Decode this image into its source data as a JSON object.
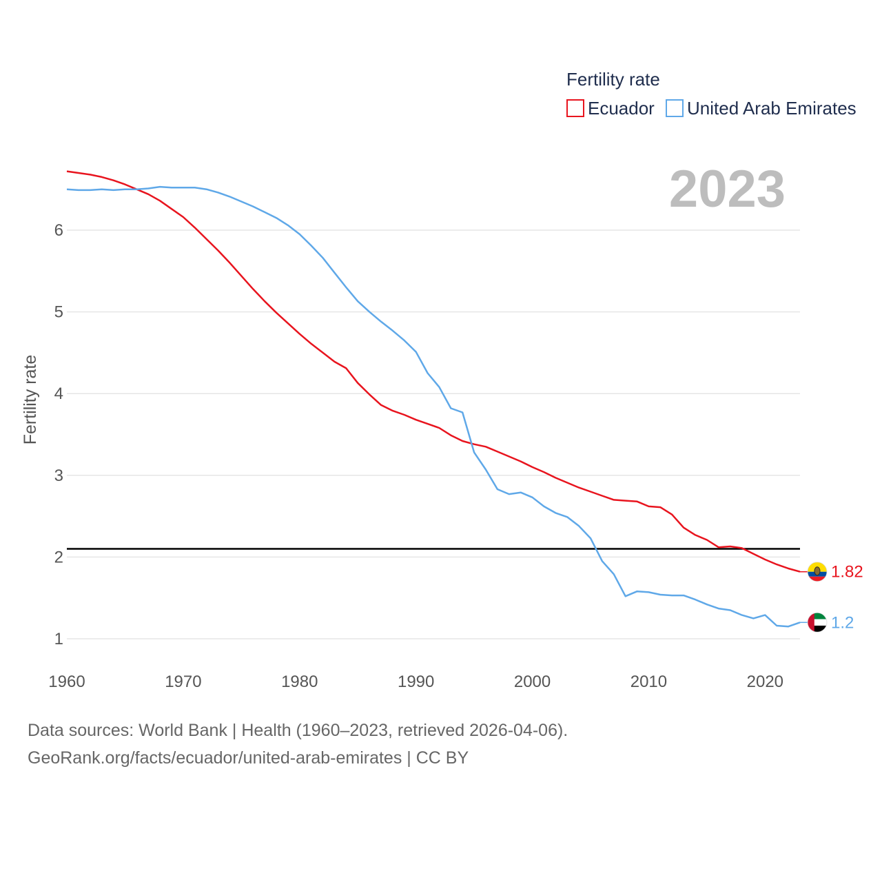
{
  "legend": {
    "title": "Fertility rate",
    "items": [
      {
        "name": "Ecuador",
        "color": "#e8141e"
      },
      {
        "name": "United Arab Emirates",
        "color": "#5fa8e8"
      }
    ]
  },
  "year_display": "2023",
  "chart_data": {
    "type": "line",
    "title": "Fertility rate",
    "xlabel": "",
    "ylabel": "Fertility rate",
    "xlim": [
      1960,
      2023
    ],
    "ylim": [
      0.8,
      6.9
    ],
    "x_ticks": [
      1960,
      1970,
      1980,
      1990,
      2000,
      2010,
      2020
    ],
    "y_ticks": [
      1,
      2,
      3,
      4,
      5,
      6
    ],
    "reference_line": {
      "value": 2.1,
      "color": "#000000"
    },
    "x": [
      1960,
      1961,
      1962,
      1963,
      1964,
      1965,
      1966,
      1967,
      1968,
      1969,
      1970,
      1971,
      1972,
      1973,
      1974,
      1975,
      1976,
      1977,
      1978,
      1979,
      1980,
      1981,
      1982,
      1983,
      1984,
      1985,
      1986,
      1987,
      1988,
      1989,
      1990,
      1991,
      1992,
      1993,
      1994,
      1995,
      1996,
      1997,
      1998,
      1999,
      2000,
      2001,
      2002,
      2003,
      2004,
      2005,
      2006,
      2007,
      2008,
      2009,
      2010,
      2011,
      2012,
      2013,
      2014,
      2015,
      2016,
      2017,
      2018,
      2019,
      2020,
      2021,
      2022,
      2023
    ],
    "series": [
      {
        "name": "Ecuador",
        "color": "#e8141e",
        "end_label": "1.82",
        "values": [
          6.72,
          6.7,
          6.68,
          6.65,
          6.61,
          6.56,
          6.5,
          6.44,
          6.36,
          6.26,
          6.16,
          6.03,
          5.89,
          5.75,
          5.6,
          5.44,
          5.28,
          5.13,
          4.99,
          4.86,
          4.73,
          4.61,
          4.5,
          4.39,
          4.31,
          4.13,
          3.99,
          3.86,
          3.79,
          3.74,
          3.68,
          3.63,
          3.58,
          3.49,
          3.42,
          3.38,
          3.35,
          3.29,
          3.23,
          3.17,
          3.1,
          3.04,
          2.97,
          2.91,
          2.85,
          2.8,
          2.75,
          2.7,
          2.69,
          2.68,
          2.62,
          2.61,
          2.52,
          2.36,
          2.27,
          2.21,
          2.12,
          2.13,
          2.11,
          2.04,
          1.97,
          1.91,
          1.86,
          1.82
        ]
      },
      {
        "name": "United Arab Emirates",
        "color": "#5fa8e8",
        "end_label": "1.2",
        "values": [
          6.5,
          6.49,
          6.49,
          6.5,
          6.49,
          6.5,
          6.5,
          6.51,
          6.53,
          6.52,
          6.52,
          6.52,
          6.5,
          6.46,
          6.41,
          6.35,
          6.29,
          6.22,
          6.15,
          6.06,
          5.95,
          5.81,
          5.66,
          5.48,
          5.3,
          5.13,
          5.0,
          4.88,
          4.77,
          4.65,
          4.51,
          4.25,
          4.08,
          3.82,
          3.77,
          3.28,
          3.07,
          2.83,
          2.77,
          2.79,
          2.73,
          2.62,
          2.54,
          2.49,
          2.38,
          2.23,
          1.95,
          1.79,
          1.52,
          1.58,
          1.57,
          1.54,
          1.53,
          1.53,
          1.48,
          1.42,
          1.37,
          1.35,
          1.29,
          1.25,
          1.29,
          1.16,
          1.15,
          1.2
        ]
      }
    ]
  },
  "source": {
    "line1": "Data sources: World Bank | Health (1960–2023, retrieved 2026-04-06).",
    "line2": "GeoRank.org/facts/ecuador/united-arab-emirates | CC BY"
  }
}
